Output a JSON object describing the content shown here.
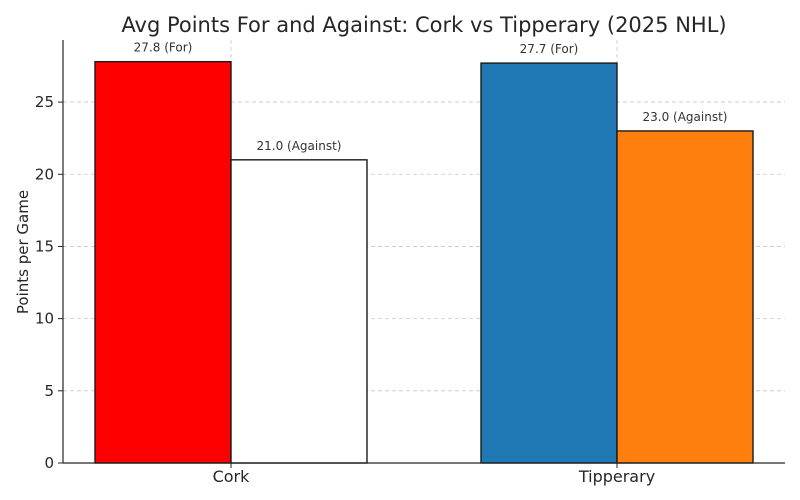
{
  "chart_data": {
    "type": "bar",
    "title": "Avg Points For and Against: Cork vs Tipperary (2025 NHL)",
    "xlabel": "",
    "ylabel": "Points per Game",
    "ylim": [
      0,
      29.3
    ],
    "yticks": [
      0,
      5,
      10,
      15,
      20,
      25
    ],
    "grid": true,
    "categories": [
      "Cork",
      "Tipperary"
    ],
    "bars": [
      {
        "category": "Cork",
        "slot": 0,
        "value": 27.8,
        "label": "27.8 (For)",
        "color": "#ff0000"
      },
      {
        "category": "Cork",
        "slot": 1,
        "value": 21.0,
        "label": "21.0 (Against)",
        "color": "#ffffff"
      },
      {
        "category": "Tipperary",
        "slot": 0,
        "value": 27.7,
        "label": "27.7 (For)",
        "color": "#1f77b4"
      },
      {
        "category": "Tipperary",
        "slot": 1,
        "value": 23.0,
        "label": "23.0 (Against)",
        "color": "#ff7f0e"
      }
    ]
  }
}
